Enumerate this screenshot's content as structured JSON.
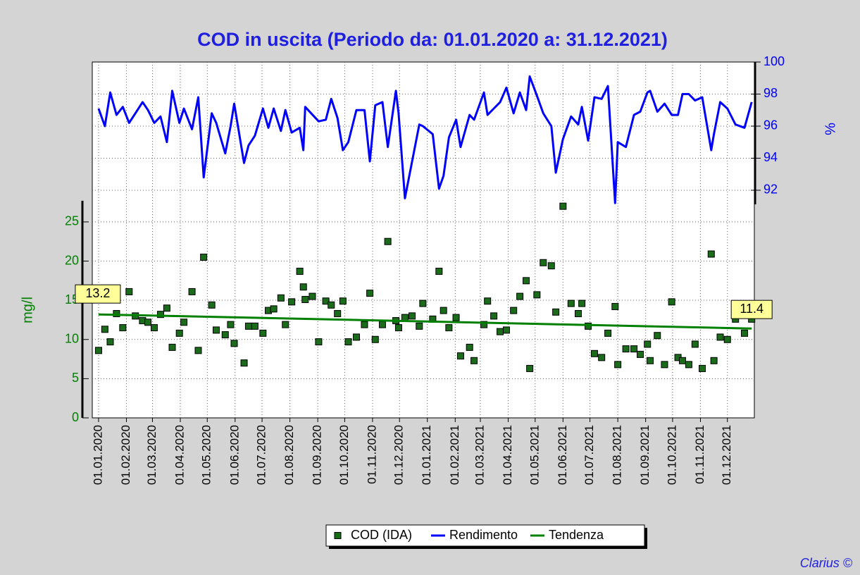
{
  "chart_data": {
    "type": "line",
    "title": "COD in uscita (Periodo da: 01.01.2020 a: 31.12.2021)",
    "ylabel": "mg/l",
    "y2label": "%",
    "annotation": "Clarius ©",
    "xlim": [
      "2019-12-25",
      "2021-12-31"
    ],
    "xticks": [
      {
        "value": "2020-01-01",
        "label": "01.01.2020"
      },
      {
        "value": "2020-02-01",
        "label": "01.02.2020"
      },
      {
        "value": "2020-03-01",
        "label": "01.03.2020"
      },
      {
        "value": "2020-04-01",
        "label": "01.04.2020"
      },
      {
        "value": "2020-05-01",
        "label": "01.05.2020"
      },
      {
        "value": "2020-06-01",
        "label": "01.06.2020"
      },
      {
        "value": "2020-07-01",
        "label": "01.07.2020"
      },
      {
        "value": "2020-08-01",
        "label": "01.08.2020"
      },
      {
        "value": "2020-09-01",
        "label": "01.09.2020"
      },
      {
        "value": "2020-10-01",
        "label": "01.10.2020"
      },
      {
        "value": "2020-11-01",
        "label": "01.11.2020"
      },
      {
        "value": "2020-12-01",
        "label": "01.12.2020"
      },
      {
        "value": "2021-01-01",
        "label": "01.01.2021"
      },
      {
        "value": "2021-02-01",
        "label": "01.02.2021"
      },
      {
        "value": "2021-03-01",
        "label": "01.03.2021"
      },
      {
        "value": "2021-04-01",
        "label": "01.04.2021"
      },
      {
        "value": "2021-05-01",
        "label": "01.05.2021"
      },
      {
        "value": "2021-06-01",
        "label": "01.06.2021"
      },
      {
        "value": "2021-07-01",
        "label": "01.07.2021"
      },
      {
        "value": "2021-08-01",
        "label": "01.08.2021"
      },
      {
        "value": "2021-09-01",
        "label": "01.09.2021"
      },
      {
        "value": "2021-10-01",
        "label": "01.10.2021"
      },
      {
        "value": "2021-11-01",
        "label": "01.11.2021"
      },
      {
        "value": "2021-12-01",
        "label": "01.12.2021"
      }
    ],
    "ylim": [
      0,
      45.4
    ],
    "yticks": [
      0,
      5,
      10,
      15,
      20,
      25
    ],
    "y2lim": [
      77.8,
      100
    ],
    "y2ticks": [
      92,
      94,
      96,
      98,
      100
    ],
    "grid": true,
    "legend": "bottom",
    "series": [
      {
        "name": "COD (IDA)",
        "type": "scatter",
        "color": "#1a6b1a",
        "x": [
          "2020-01-01",
          "2020-01-08",
          "2020-01-14",
          "2020-01-21",
          "2020-01-28",
          "2020-02-04",
          "2020-02-11",
          "2020-02-19",
          "2020-02-25",
          "2020-03-03",
          "2020-03-10",
          "2020-03-17",
          "2020-03-23",
          "2020-03-31",
          "2020-04-05",
          "2020-04-14",
          "2020-04-21",
          "2020-04-27",
          "2020-05-06",
          "2020-05-11",
          "2020-05-21",
          "2020-05-27",
          "2020-05-31",
          "2020-06-11",
          "2020-06-16",
          "2020-06-23",
          "2020-07-02",
          "2020-07-08",
          "2020-07-14",
          "2020-07-22",
          "2020-07-27",
          "2020-08-03",
          "2020-08-12",
          "2020-08-16",
          "2020-08-18",
          "2020-08-26",
          "2020-09-02",
          "2020-09-10",
          "2020-09-16",
          "2020-09-23",
          "2020-09-29",
          "2020-10-05",
          "2020-10-14",
          "2020-10-23",
          "2020-10-29",
          "2020-11-04",
          "2020-11-12",
          "2020-11-18",
          "2020-11-27",
          "2020-11-30",
          "2020-12-07",
          "2020-12-15",
          "2020-12-23",
          "2020-12-27",
          "2021-01-07",
          "2021-01-14",
          "2021-01-19",
          "2021-01-25",
          "2021-02-02",
          "2021-02-07",
          "2021-02-17",
          "2021-02-22",
          "2021-03-05",
          "2021-03-09",
          "2021-03-16",
          "2021-03-23",
          "2021-03-30",
          "2021-04-07",
          "2021-04-14",
          "2021-04-21",
          "2021-04-25",
          "2021-05-03",
          "2021-05-10",
          "2021-05-19",
          "2021-05-24",
          "2021-06-01",
          "2021-06-10",
          "2021-06-18",
          "2021-06-22",
          "2021-06-29",
          "2021-07-06",
          "2021-07-14",
          "2021-07-21",
          "2021-07-29",
          "2021-08-01",
          "2021-08-10",
          "2021-08-19",
          "2021-08-26",
          "2021-09-03",
          "2021-09-06",
          "2021-09-14",
          "2021-09-22",
          "2021-09-30",
          "2021-10-07",
          "2021-10-12",
          "2021-10-19",
          "2021-10-26",
          "2021-11-03",
          "2021-11-13",
          "2021-11-16",
          "2021-11-23",
          "2021-12-01",
          "2021-12-10",
          "2021-12-20",
          "2021-12-28"
        ],
        "values": [
          8.6,
          11.3,
          9.7,
          13.3,
          11.5,
          16.1,
          13.0,
          12.4,
          12.2,
          11.5,
          13.2,
          14.0,
          9.0,
          10.8,
          12.2,
          16.1,
          8.6,
          20.5,
          14.4,
          11.2,
          10.6,
          11.9,
          9.5,
          7.0,
          11.7,
          11.7,
          10.8,
          13.7,
          13.9,
          15.3,
          11.9,
          14.8,
          18.7,
          16.7,
          15.1,
          15.5,
          9.7,
          14.9,
          14.4,
          13.3,
          14.9,
          9.7,
          10.3,
          11.9,
          15.9,
          10.0,
          11.9,
          22.5,
          12.4,
          11.5,
          12.8,
          13.0,
          11.7,
          14.6,
          12.6,
          18.7,
          13.7,
          11.5,
          12.8,
          7.9,
          9.0,
          7.3,
          11.9,
          14.9,
          13.0,
          11.0,
          11.2,
          13.7,
          15.5,
          17.5,
          6.3,
          15.7,
          19.8,
          19.4,
          13.5,
          27.0,
          14.6,
          13.3,
          14.6,
          11.7,
          8.2,
          7.7,
          10.8,
          14.2,
          6.8,
          8.8,
          8.8,
          8.1,
          9.4,
          7.3,
          10.5,
          6.8,
          14.8,
          7.7,
          7.3,
          6.8,
          9.4,
          6.3,
          20.9,
          7.3,
          10.3,
          10.0,
          12.6,
          10.8,
          12.6
        ]
      },
      {
        "name": "Rendimento",
        "type": "line",
        "axis": "y2",
        "color": "#0000ff",
        "x": [
          "2020-01-01",
          "2020-01-08",
          "2020-01-14",
          "2020-01-21",
          "2020-01-28",
          "2020-02-04",
          "2020-02-11",
          "2020-02-19",
          "2020-02-25",
          "2020-03-03",
          "2020-03-10",
          "2020-03-17",
          "2020-03-23",
          "2020-03-31",
          "2020-04-05",
          "2020-04-14",
          "2020-04-21",
          "2020-04-27",
          "2020-05-06",
          "2020-05-11",
          "2020-05-21",
          "2020-05-27",
          "2020-05-31",
          "2020-06-11",
          "2020-06-16",
          "2020-06-23",
          "2020-07-02",
          "2020-07-08",
          "2020-07-14",
          "2020-07-22",
          "2020-07-27",
          "2020-08-03",
          "2020-08-12",
          "2020-08-16",
          "2020-08-18",
          "2020-09-02",
          "2020-09-10",
          "2020-09-16",
          "2020-09-23",
          "2020-09-29",
          "2020-10-05",
          "2020-10-14",
          "2020-10-23",
          "2020-10-29",
          "2020-11-04",
          "2020-11-12",
          "2020-11-18",
          "2020-11-27",
          "2020-11-30",
          "2020-12-07",
          "2020-12-15",
          "2020-12-23",
          "2020-12-27",
          "2021-01-07",
          "2021-01-14",
          "2021-01-19",
          "2021-01-25",
          "2021-02-02",
          "2021-02-07",
          "2021-02-17",
          "2021-02-22",
          "2021-03-05",
          "2021-03-09",
          "2021-03-16",
          "2021-03-23",
          "2021-03-30",
          "2021-04-07",
          "2021-04-14",
          "2021-04-21",
          "2021-04-25",
          "2021-05-03",
          "2021-05-10",
          "2021-05-19",
          "2021-05-24",
          "2021-06-01",
          "2021-06-10",
          "2021-06-18",
          "2021-06-22",
          "2021-06-29",
          "2021-07-06",
          "2021-07-14",
          "2021-07-21",
          "2021-07-29",
          "2021-08-01",
          "2021-08-10",
          "2021-08-19",
          "2021-08-26",
          "2021-09-03",
          "2021-09-06",
          "2021-09-14",
          "2021-09-22",
          "2021-09-30",
          "2021-10-07",
          "2021-10-12",
          "2021-10-19",
          "2021-10-26",
          "2021-11-03",
          "2021-11-13",
          "2021-11-16",
          "2021-11-23",
          "2021-12-01",
          "2021-12-10",
          "2021-12-20",
          "2021-12-28"
        ],
        "values": [
          97.1,
          96.0,
          98.1,
          96.7,
          97.2,
          96.2,
          96.8,
          97.5,
          97.0,
          96.2,
          96.6,
          95.0,
          98.2,
          96.2,
          97.1,
          95.8,
          97.8,
          92.8,
          96.8,
          96.2,
          94.3,
          96.0,
          97.4,
          93.7,
          94.8,
          95.4,
          97.1,
          95.9,
          97.1,
          95.7,
          97.0,
          95.6,
          95.9,
          94.5,
          97.2,
          96.3,
          96.4,
          97.7,
          96.5,
          94.5,
          95.0,
          97.0,
          97.0,
          93.8,
          97.3,
          97.5,
          94.7,
          98.2,
          96.8,
          91.5,
          93.8,
          96.1,
          96.0,
          95.5,
          92.1,
          92.9,
          95.3,
          96.4,
          94.7,
          96.7,
          96.4,
          98.1,
          96.7,
          97.1,
          97.5,
          98.4,
          96.8,
          98.1,
          97.0,
          99.1,
          97.9,
          96.8,
          96.0,
          93.1,
          95.2,
          96.6,
          96.1,
          97.2,
          95.1,
          97.8,
          97.7,
          98.5,
          91.2,
          95.0,
          94.7,
          96.7,
          96.9,
          98.1,
          98.2,
          96.9,
          97.4,
          96.7,
          96.7,
          98.0,
          98.0,
          97.6,
          97.8,
          94.5,
          95.5,
          97.5,
          97.1,
          96.1,
          95.9,
          97.5
        ]
      },
      {
        "name": "Tendenza",
        "type": "trend",
        "color": "#008000",
        "x": [
          "2020-01-01",
          "2021-12-28"
        ],
        "values": [
          13.2,
          11.4
        ]
      }
    ]
  }
}
